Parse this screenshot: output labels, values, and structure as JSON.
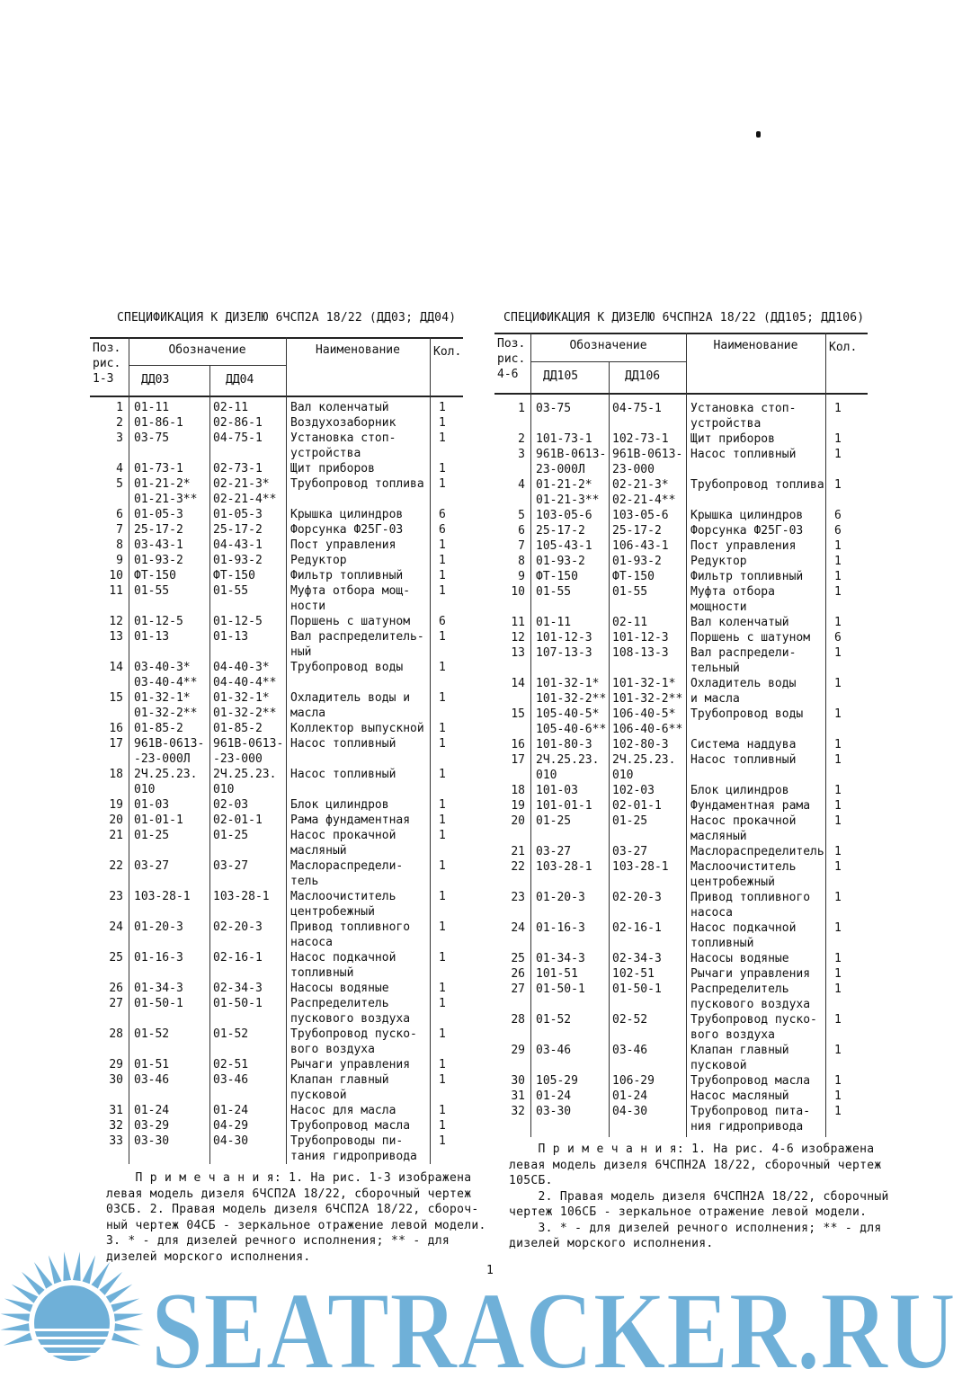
{
  "left": {
    "title": "СПЕЦИФИКАЦИЯ К ДИЗЕЛЮ 6ЧСП2А 18/22 (ДД03; ДД04)",
    "headers": {
      "pos": "Поз.\nрис.\n1-3",
      "designation": "Обозначение",
      "col1": "ДД03",
      "col2": "ДД04",
      "name": "Наименование",
      "qty": "Кол."
    },
    "rows": [
      [
        "1",
        "01-11",
        "02-11",
        "Вал коленчатый",
        "1"
      ],
      [
        "2",
        "01-86-1",
        "02-86-1",
        "Воздухозаборник",
        "1"
      ],
      [
        "3",
        "03-75",
        "04-75-1",
        "Установка стоп-\nустройства",
        "1"
      ],
      [
        "4",
        "01-73-1",
        "02-73-1",
        "Щит приборов",
        "1"
      ],
      [
        "5",
        "01-21-2*\n01-21-3**",
        "02-21-3*\n02-21-4**",
        "Трубопровод топлива",
        "1"
      ],
      [
        "6",
        "01-05-3",
        "01-05-3",
        "Крышка цилиндров",
        "6"
      ],
      [
        "7",
        "25-17-2",
        "25-17-2",
        "Форсунка Ф25Г-03",
        "6"
      ],
      [
        "8",
        "03-43-1",
        "04-43-1",
        "Пост управления",
        "1"
      ],
      [
        "9",
        "01-93-2",
        "01-93-2",
        "Редуктор",
        "1"
      ],
      [
        "10",
        "ФТ-150",
        "ФТ-150",
        "Фильтр топливный",
        "1"
      ],
      [
        "11",
        "01-55",
        "01-55",
        "Муфта отбора мощ-\nности",
        "1"
      ],
      [
        "12",
        "01-12-5",
        "01-12-5",
        "Поршень с шатуном",
        "6"
      ],
      [
        "13",
        "01-13",
        "01-13",
        "Вал распределитель-\nный",
        "1"
      ],
      [
        "14",
        "03-40-3*\n03-40-4**",
        "04-40-3*\n04-40-4**",
        "Трубопровод воды",
        "1"
      ],
      [
        "15",
        "01-32-1*\n01-32-2**",
        "01-32-1*\n01-32-2**",
        "Охладитель воды и\nмасла",
        "1"
      ],
      [
        "16",
        "01-85-2",
        "01-85-2",
        "Коллектор выпускной",
        "1"
      ],
      [
        "17",
        "961В-0613-\n-23-000Л",
        "961В-0613-\n-23-000",
        "Насос топливный",
        "1"
      ],
      [
        "18",
        "2Ч.25.23.\n010",
        "2Ч.25.23.\n010",
        "Насос топливный",
        "1"
      ],
      [
        "19",
        "01-03",
        "02-03",
        "Блок цилиндров",
        "1"
      ],
      [
        "20",
        "01-01-1",
        "02-01-1",
        "Рама фундаментная",
        "1"
      ],
      [
        "21",
        "01-25",
        "01-25",
        "Насос прокачной\nмасляный",
        "1"
      ],
      [
        "22",
        "03-27",
        "03-27",
        "Маслораспредели-\nтель",
        "1"
      ],
      [
        "23",
        "103-28-1",
        "103-28-1",
        "Маслоочиститель\nцентробежный",
        "1"
      ],
      [
        "24",
        "01-20-3",
        "02-20-3",
        "Привод топливного\nнасоса",
        "1"
      ],
      [
        "25",
        "01-16-3",
        "02-16-1",
        "Насос подкачной\nтопливный",
        "1"
      ],
      [
        "26",
        "01-34-3",
        "02-34-3",
        "Насосы водяные",
        "1"
      ],
      [
        "27",
        "01-50-1",
        "01-50-1",
        "Распределитель\nпускового воздуха",
        "1"
      ],
      [
        "28",
        "01-52",
        "01-52",
        "Трубопровод пуско-\nвого воздуха",
        "1"
      ],
      [
        "29",
        "01-51",
        "02-51",
        "Рычаги управления",
        "1"
      ],
      [
        "30",
        "03-46",
        "03-46",
        "Клапан главный\nпусковой",
        "1"
      ],
      [
        "31",
        "01-24",
        "01-24",
        "Насос для масла",
        "1"
      ],
      [
        "32",
        "03-29",
        "04-29",
        "Трубопровод масла",
        "1"
      ],
      [
        "33",
        "03-30",
        "04-30",
        "Трубопроводы пи-\nтания гидропривода",
        "1"
      ]
    ],
    "notes": [
      "    П р и м е ч а н и я: 1. На рис. 1-3 изображена",
      "левая модель дизеля 6ЧСП2А 18/22, сборочный чертеж",
      "03СБ. 2. Правая модель дизеля 6ЧСП2А 18/22, сбороч-",
      "ный чертеж 04СБ - зеркальное отражение левой модели.",
      "3. * - для дизелей речного исполнения; ** - для",
      "дизелей морского исполнения."
    ]
  },
  "right": {
    "title": "СПЕЦИФИКАЦИЯ К ДИЗЕЛЮ 6ЧСПН2А 18/22 (ДД105; ДД106)",
    "headers": {
      "pos": "Поз.\nрис.\n4-6",
      "designation": "Обозначение",
      "col1": "ДД105",
      "col2": "ДД106",
      "name": "Наименование",
      "qty": "Кол."
    },
    "rows": [
      [
        "1",
        "03-75",
        "04-75-1",
        "Установка стоп-\nустройства",
        "1"
      ],
      [
        "2",
        "101-73-1",
        "102-73-1",
        "Щит приборов",
        "1"
      ],
      [
        "3",
        "961В-0613-\n23-000Л",
        "961В-0613-\n23-000",
        "Насос топливный",
        "1"
      ],
      [
        "4",
        "01-21-2*\n01-21-3**",
        "02-21-3*\n02-21-4**",
        "Трубопровод топлива",
        "1"
      ],
      [
        "5",
        "103-05-6",
        "103-05-6",
        "Крышка цилиндров",
        "6"
      ],
      [
        "6",
        "25-17-2",
        "25-17-2",
        "Форсунка Ф25Г-03",
        "6"
      ],
      [
        "7",
        "105-43-1",
        "106-43-1",
        "Пост управления",
        "1"
      ],
      [
        "8",
        "01-93-2",
        "01-93-2",
        "Редуктор",
        "1"
      ],
      [
        "9",
        "ФТ-150",
        "ФТ-150",
        "Фильтр топливный",
        "1"
      ],
      [
        "10",
        "01-55",
        "01-55",
        "Муфта отбора\nмощности",
        "1"
      ],
      [
        "11",
        "01-11",
        "02-11",
        "Вал коленчатый",
        "1"
      ],
      [
        "12",
        "101-12-3",
        "101-12-3",
        "Поршень с шатуном",
        "6"
      ],
      [
        "13",
        "107-13-3",
        "108-13-3",
        "Вал распредели-\nтельный",
        "1"
      ],
      [
        "14",
        "101-32-1*\n101-32-2**",
        "101-32-1*\n101-32-2**",
        "Охладитель воды\nи масла",
        "1"
      ],
      [
        "15",
        "105-40-5*\n105-40-6**",
        "106-40-5*\n106-40-6**",
        "Трубопровод воды",
        "1"
      ],
      [
        "16",
        "101-80-3",
        "102-80-3",
        "Система наддува",
        "1"
      ],
      [
        "17",
        "2Ч.25.23.\n010",
        "2Ч.25.23.\n010",
        "Насос топливный",
        "1"
      ],
      [
        "18",
        "101-03",
        "102-03",
        "Блок цилиндров",
        "1"
      ],
      [
        "19",
        "101-01-1",
        "02-01-1",
        "Фундаментная рама",
        "1"
      ],
      [
        "20",
        "01-25",
        "01-25",
        "Насос прокачной\nмасляный",
        "1"
      ],
      [
        "21",
        "03-27",
        "03-27",
        "Маслораспределитель",
        "1"
      ],
      [
        "22",
        "103-28-1",
        "103-28-1",
        "Маслоочиститель\nцентробежный",
        "1"
      ],
      [
        "23",
        "01-20-3",
        "02-20-3",
        "Привод топливного\nнасоса",
        "1"
      ],
      [
        "24",
        "01-16-3",
        "02-16-1",
        "Насос подкачной\nтопливный",
        "1"
      ],
      [
        "25",
        "01-34-3",
        "02-34-3",
        "Насосы водяные",
        "1"
      ],
      [
        "26",
        "101-51",
        "102-51",
        "Рычаги управления",
        "1"
      ],
      [
        "27",
        "01-50-1",
        "01-50-1",
        "Распределитель\nпускового воздуха",
        "1"
      ],
      [
        "28",
        "01-52",
        "02-52",
        "Трубопровод пуско-\nвого воздуха",
        "1"
      ],
      [
        "29",
        "03-46",
        "03-46",
        "Клапан главный\nпусковой",
        "1"
      ],
      [
        "30",
        "105-29",
        "106-29",
        "Трубопровод масла",
        "1"
      ],
      [
        "31",
        "01-24",
        "01-24",
        "Насос масляный",
        "1"
      ],
      [
        "32",
        "03-30",
        "04-30",
        "Трубопровод пита-\nния гидропривода",
        "1"
      ]
    ],
    "notes": [
      "    П р и м е ч а н и я: 1. На рис. 4-6 изображена",
      "левая модель дизеля 6ЧСПН2А 18/22, сборочный чертеж",
      "105СБ.",
      "    2. Правая модель дизеля 6ЧСПН2А 18/22, сборочный",
      "чертеж 106СБ - зеркальное отражение левой модели.",
      "    3. * - для дизелей речного исполнения; ** - для",
      "дизелей морского исполнения."
    ]
  },
  "page_number": "1",
  "watermark": {
    "text": "SEATRACKER.RU",
    "color": "#6fb0d8"
  }
}
